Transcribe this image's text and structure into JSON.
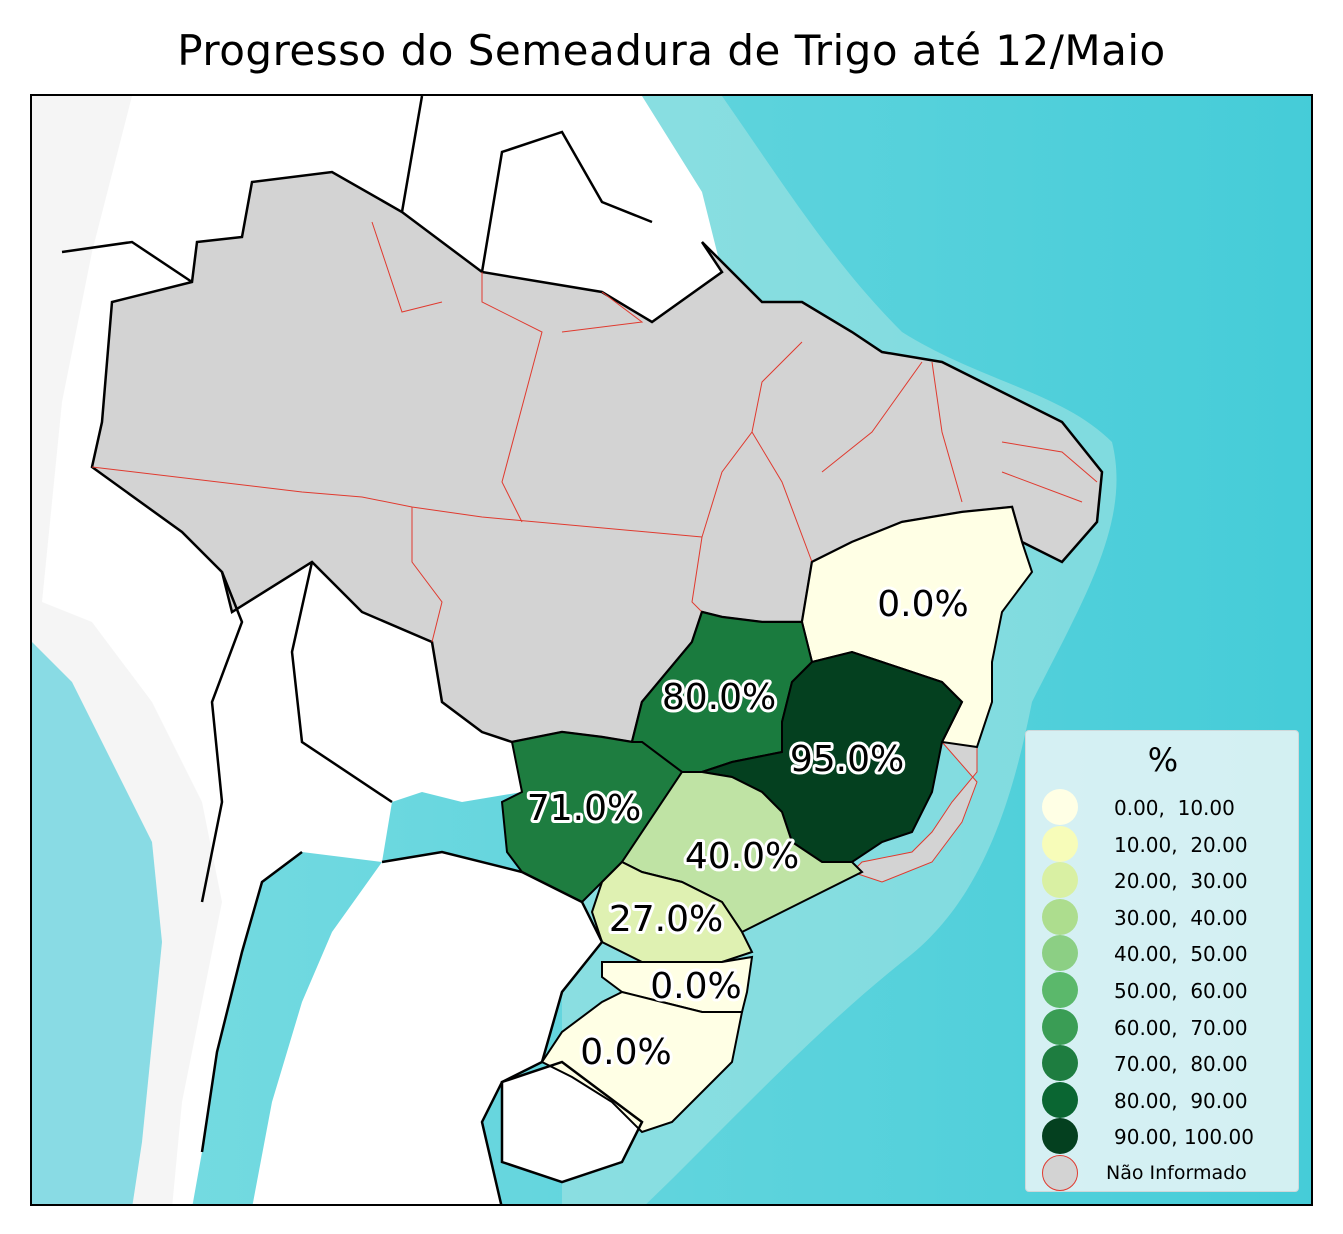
{
  "title": "Progresso do Semeadura de Trigo até 12/Maio",
  "colors": {
    "ocean": "#5fd3dc",
    "land_brazil_na": "#d3d3d3",
    "land_other": "#ffffff",
    "state_border": "#e03a2f",
    "country_border": "#000000"
  },
  "states": [
    {
      "name": "BA",
      "value_label": "0.0%",
      "value": 0.0,
      "color": "#ffffe5"
    },
    {
      "name": "GO",
      "value_label": "80.0%",
      "value": 80.0,
      "color": "#1a7b3e"
    },
    {
      "name": "MG",
      "value_label": "95.0%",
      "value": 95.0,
      "color": "#04401f"
    },
    {
      "name": "MS",
      "value_label": "71.0%",
      "value": 71.0,
      "color": "#1e7d40"
    },
    {
      "name": "SP",
      "value_label": "40.0%",
      "value": 40.0,
      "color": "#bfe3a4"
    },
    {
      "name": "PR",
      "value_label": "27.0%",
      "value": 27.0,
      "color": "#dff1b2"
    },
    {
      "name": "SC",
      "value_label": "0.0%",
      "value": 0.0,
      "color": "#ffffe5"
    },
    {
      "name": "RS",
      "value_label": "0.0%",
      "value": 0.0,
      "color": "#ffffe5"
    }
  ],
  "legend": {
    "title": "%",
    "items": [
      {
        "label": "0.00,  10.00",
        "color": "#ffffe5"
      },
      {
        "label": "10.00,  20.00",
        "color": "#f7fcb9"
      },
      {
        "label": "20.00,  30.00",
        "color": "#d9f0a3"
      },
      {
        "label": "30.00,  40.00",
        "color": "#addd8e"
      },
      {
        "label": "40.00,  50.00",
        "color": "#8ccf84"
      },
      {
        "label": "50.00,  60.00",
        "color": "#5bb86b"
      },
      {
        "label": "60.00,  70.00",
        "color": "#3a9d55"
      },
      {
        "label": "70.00,  80.00",
        "color": "#1e7d40"
      },
      {
        "label": "80.00,  90.00",
        "color": "#0a6632"
      },
      {
        "label": "90.00, 100.00",
        "color": "#04401f"
      },
      {
        "label": "Não Informado",
        "color": "#d3d3d3",
        "border": "#e03a2f"
      }
    ]
  }
}
